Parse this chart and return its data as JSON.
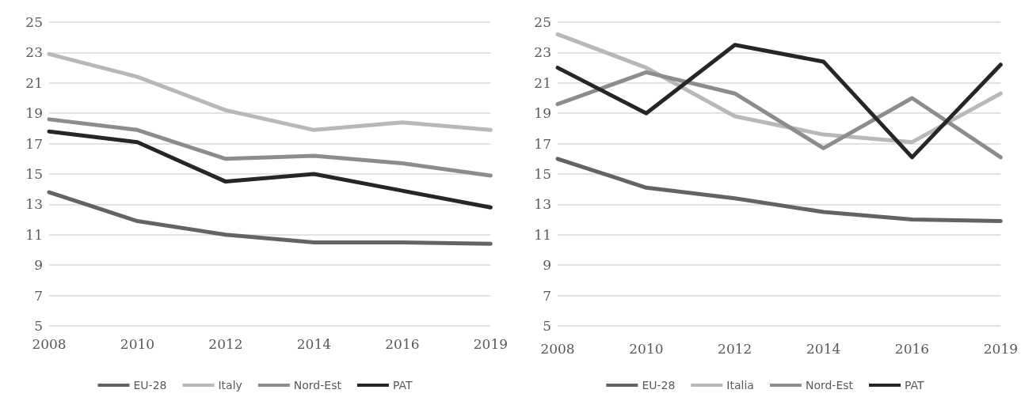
{
  "chart_data": [
    {
      "type": "line",
      "categories": [
        "2008",
        "2010",
        "2012",
        "2014",
        "2016",
        "2019"
      ],
      "ylim": [
        5,
        25
      ],
      "yticks": [
        5,
        7,
        9,
        11,
        13,
        15,
        17,
        19,
        21,
        23,
        25
      ],
      "grid": "y",
      "legend": "bottom",
      "marker": "none",
      "series": [
        {
          "name": "EU-28",
          "color": "#636363",
          "values": [
            13.8,
            11.9,
            11.0,
            10.5,
            10.5,
            10.4
          ]
        },
        {
          "name": "Italy",
          "color": "#b8b8b8",
          "values": [
            22.9,
            21.4,
            19.2,
            17.9,
            18.4,
            17.9
          ]
        },
        {
          "name": "Nord-Est",
          "color": "#8c8c8c",
          "values": [
            18.6,
            17.9,
            16.0,
            16.2,
            15.7,
            14.9
          ]
        },
        {
          "name": "PAT",
          "color": "#262626",
          "values": [
            17.8,
            17.1,
            14.5,
            15.0,
            13.9,
            12.8
          ]
        }
      ]
    },
    {
      "type": "line",
      "categories": [
        "2008",
        "2010",
        "2012",
        "2014",
        "2016",
        "2019"
      ],
      "ylim": [
        5,
        25
      ],
      "yticks": [
        5,
        7,
        9,
        11,
        13,
        15,
        17,
        19,
        21,
        23,
        25
      ],
      "grid": "y",
      "legend": "bottom",
      "marker": "none",
      "series": [
        {
          "name": "EU-28",
          "color": "#636363",
          "values": [
            16.0,
            14.1,
            13.4,
            12.5,
            12.0,
            11.9
          ]
        },
        {
          "name": "Italia",
          "color": "#b8b8b8",
          "values": [
            24.2,
            22.0,
            18.8,
            17.6,
            17.1,
            20.3
          ]
        },
        {
          "name": "Nord-Est",
          "color": "#8c8c8c",
          "values": [
            19.6,
            21.7,
            20.3,
            16.7,
            20.0,
            16.1
          ]
        },
        {
          "name": "PAT",
          "color": "#262626",
          "values": [
            22.0,
            19.0,
            23.5,
            22.4,
            16.1,
            22.2
          ]
        }
      ]
    }
  ]
}
